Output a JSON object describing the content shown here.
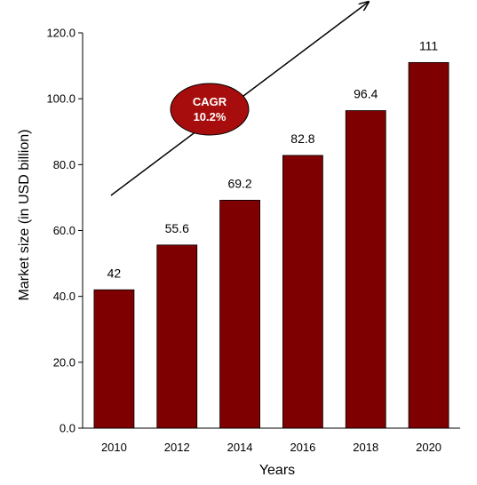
{
  "chart_data": {
    "type": "bar",
    "categories": [
      "2010",
      "2012",
      "2014",
      "2016",
      "2018",
      "2020"
    ],
    "values": [
      42,
      55.6,
      69.2,
      82.8,
      96.4,
      111
    ],
    "data_labels": [
      "42",
      "55.6",
      "69.2",
      "82.8",
      "96.4",
      "111"
    ],
    "xlabel": "Years",
    "ylabel": "Market size (in USD billion)",
    "ylim": [
      0,
      120
    ],
    "yticks": [
      0,
      20,
      40,
      60,
      80,
      100,
      120
    ],
    "ytick_labels": [
      "0.0",
      "20.0",
      "40.0",
      "60.0",
      "80.0",
      "100.0",
      "120.0"
    ],
    "grid": false,
    "annotation": {
      "line1": "CAGR",
      "line2": "10.2%",
      "shape": "ellipse",
      "arrow": "upward-trend"
    },
    "colors": {
      "bar": "#7f0000",
      "annotation_fill": "#a80d0d"
    }
  }
}
